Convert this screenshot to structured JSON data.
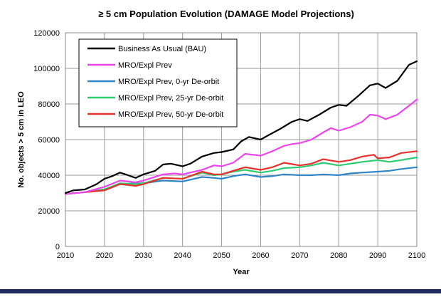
{
  "chart_data": {
    "type": "line",
    "title": "≥ 5 cm Population Evolution (DAMAGE Model Projections)",
    "xlabel": "Year",
    "ylabel": "No. objects > 5 cm in LEO",
    "xlim": [
      2010,
      2100
    ],
    "ylim": [
      0,
      120000
    ],
    "x_ticks": [
      2010,
      2020,
      2030,
      2040,
      2050,
      2060,
      2070,
      2080,
      2090,
      2100
    ],
    "y_ticks": [
      0,
      20000,
      40000,
      60000,
      80000,
      100000,
      120000
    ],
    "grid": true,
    "legend_position": "top-left",
    "series": [
      {
        "name": "Business As Usual (BAU)",
        "color": "#000000",
        "x": [
          2010,
          2012,
          2015,
          2018,
          2020,
          2022,
          2024,
          2026,
          2028,
          2030,
          2033,
          2035,
          2037,
          2040,
          2042,
          2045,
          2048,
          2050,
          2053,
          2055,
          2057,
          2060,
          2062,
          2065,
          2068,
          2070,
          2072,
          2075,
          2078,
          2080,
          2082,
          2085,
          2088,
          2090,
          2092,
          2095,
          2098,
          2100
        ],
        "y": [
          30000,
          31500,
          32000,
          35000,
          38000,
          39500,
          41500,
          40000,
          38500,
          40500,
          42500,
          46000,
          46500,
          45000,
          46500,
          50500,
          52500,
          53000,
          54500,
          59000,
          61500,
          60000,
          62500,
          66000,
          70000,
          71500,
          70500,
          74000,
          78000,
          79500,
          79000,
          84500,
          90500,
          91500,
          89000,
          93000,
          102000,
          104000
        ]
      },
      {
        "name": "MRO/Expl Prev",
        "color": "#ee44ee",
        "x": [
          2010,
          2015,
          2020,
          2024,
          2028,
          2030,
          2035,
          2038,
          2040,
          2045,
          2048,
          2050,
          2053,
          2056,
          2060,
          2063,
          2066,
          2068,
          2070,
          2073,
          2076,
          2078,
          2080,
          2083,
          2086,
          2088,
          2090,
          2092,
          2095,
          2098,
          2100
        ],
        "y": [
          29500,
          30500,
          33500,
          37000,
          36000,
          37000,
          40500,
          41000,
          40500,
          43000,
          45500,
          45000,
          47000,
          52000,
          51000,
          53500,
          56500,
          57500,
          58000,
          60000,
          64000,
          66500,
          65000,
          67000,
          70000,
          74000,
          73500,
          71500,
          74000,
          79000,
          82500
        ]
      },
      {
        "name": "MRO/Expl Prev, 0-yr De-orbit",
        "color": "#2e86c8",
        "x": [
          2010,
          2015,
          2020,
          2024,
          2028,
          2030,
          2035,
          2040,
          2045,
          2048,
          2050,
          2053,
          2056,
          2060,
          2063,
          2066,
          2070,
          2073,
          2076,
          2080,
          2083,
          2086,
          2090,
          2093,
          2096,
          2100
        ],
        "y": [
          29500,
          30500,
          32000,
          35000,
          35500,
          35500,
          37000,
          36500,
          39000,
          38500,
          38000,
          39500,
          40500,
          39000,
          39500,
          40500,
          40000,
          40000,
          40500,
          40000,
          41000,
          41500,
          42000,
          42500,
          43500,
          44500
        ]
      },
      {
        "name": "MRO/Expl Prev, 25-yr De-orbit",
        "color": "#2ecc71",
        "x": [
          2010,
          2015,
          2020,
          2024,
          2028,
          2030,
          2035,
          2040,
          2045,
          2048,
          2050,
          2053,
          2056,
          2060,
          2063,
          2066,
          2070,
          2073,
          2076,
          2080,
          2083,
          2086,
          2090,
          2093,
          2096,
          2100
        ],
        "y": [
          29500,
          30500,
          32000,
          35500,
          35000,
          35500,
          38500,
          38000,
          41500,
          40000,
          40500,
          42000,
          43000,
          41500,
          42500,
          44000,
          44500,
          45500,
          47000,
          45500,
          46500,
          47500,
          48500,
          47500,
          48500,
          50000
        ]
      },
      {
        "name": "MRO/Expl Prev, 50-yr De-orbit",
        "color": "#e8312a",
        "x": [
          2010,
          2015,
          2020,
          2024,
          2028,
          2030,
          2035,
          2040,
          2045,
          2048,
          2050,
          2053,
          2056,
          2060,
          2063,
          2066,
          2070,
          2073,
          2076,
          2080,
          2083,
          2086,
          2089,
          2090,
          2093,
          2096,
          2100
        ],
        "y": [
          29500,
          30500,
          31500,
          35000,
          34000,
          35000,
          38500,
          38000,
          42000,
          40500,
          40500,
          42500,
          44500,
          43000,
          44500,
          47000,
          45500,
          46500,
          49000,
          47500,
          48500,
          50500,
          51500,
          49500,
          50000,
          52500,
          53500
        ]
      }
    ]
  }
}
